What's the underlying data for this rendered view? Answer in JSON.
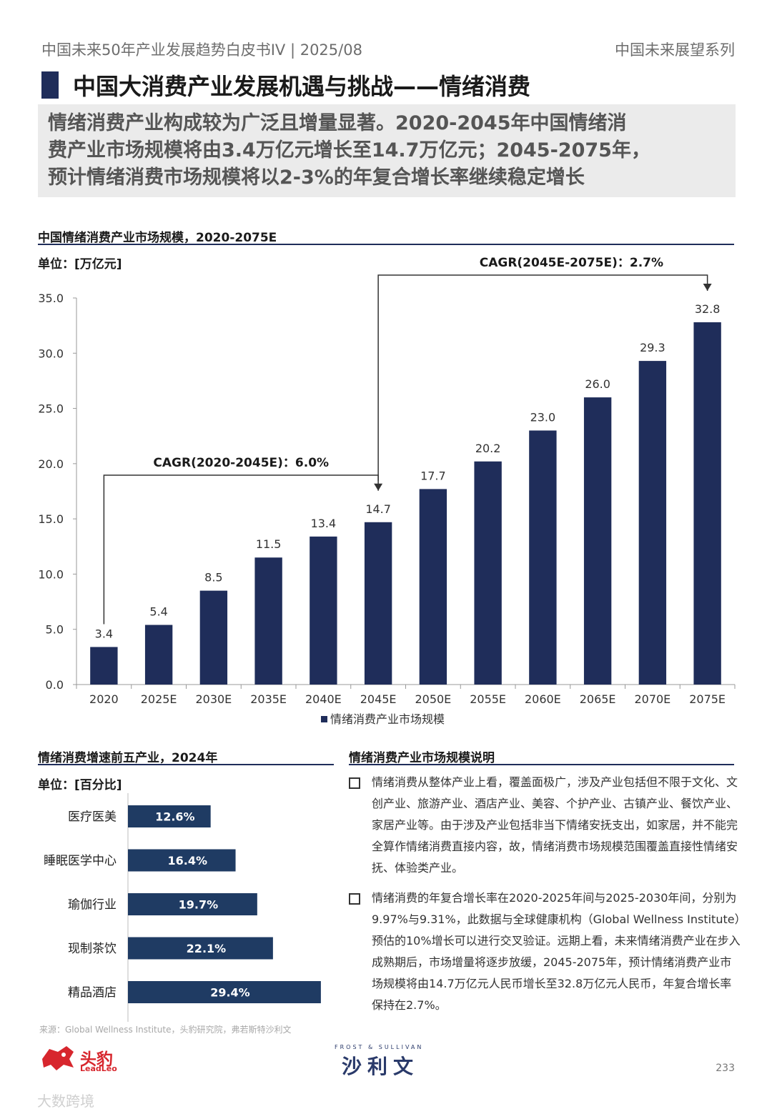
{
  "header": {
    "left": "中国未来50年产业发展趋势白皮书IV | 2025/08",
    "right": "中国未来展望系列"
  },
  "title": "中国大消费产业发展机遇与挑战——情绪消费",
  "summary": [
    "情绪消费产业构成较为广泛且增量显著。2020-2045年中国情绪消",
    "费产业市场规模将由3.4万亿元增长至14.7万亿元；2045-2075年，",
    "预计情绪消费市场规模将以2-3%的年复合增长率继续稳定增长"
  ],
  "chart_data": [
    {
      "type": "bar",
      "title": "中国情绪消费产业市场规模，2020-2075E",
      "unit_label": "单位：[万亿元]",
      "categories": [
        "2020",
        "2025E",
        "2030E",
        "2035E",
        "2040E",
        "2045E",
        "2050E",
        "2055E",
        "2060E",
        "2065E",
        "2070E",
        "2075E"
      ],
      "series": [
        {
          "name": "情绪消费产业市场规模",
          "values": [
            3.4,
            5.4,
            8.5,
            11.5,
            13.4,
            14.7,
            17.7,
            20.2,
            23.0,
            26.0,
            29.3,
            32.8
          ]
        }
      ],
      "value_labels": [
        "3.4",
        "5.4",
        "8.5",
        "11.5",
        "13.4",
        "14.7",
        "17.7",
        "20.2",
        "23.0",
        "26.0",
        "29.3",
        "32.8"
      ],
      "yticks": [
        "0.0",
        "5.0",
        "10.0",
        "15.0",
        "20.0",
        "25.0",
        "30.0",
        "35.0"
      ],
      "ylim": [
        0,
        35
      ],
      "bar_color": "#1f2d5a",
      "legend_position": "bottom",
      "annotations": [
        {
          "text": "CAGR(2020-2045E)：6.0%",
          "from": "2020",
          "to": "2045E"
        },
        {
          "text": "CAGR(2045E-2075E)：2.7%",
          "from": "2045E",
          "to": "2075E"
        }
      ]
    },
    {
      "type": "bar",
      "orientation": "horizontal",
      "title": "情绪消费增速前五产业，2024年",
      "unit_label": "单位：[百分比]",
      "categories": [
        "医疗医美",
        "睡眠医学中心",
        "瑜伽行业",
        "现制茶饮",
        "精品酒店"
      ],
      "values": [
        12.6,
        16.4,
        19.7,
        22.1,
        29.4
      ],
      "value_labels": [
        "12.6%",
        "16.4%",
        "19.7%",
        "22.1%",
        "29.4%"
      ],
      "bar_color": "#1f3b63"
    }
  ],
  "notes": {
    "title": "情绪消费产业市场规模说明",
    "items": [
      "情绪消费从整体产业上看，覆盖面极广，涉及产业包括但不限于文化、文创产业、旅游产业、酒店产业、美容、个护产业、古镇产业、餐饮产业、家居产业等。由于涉及产业包括非当下情绪安抚支出，如家居，并不能完全算作情绪消费直接内容，故，情绪消费市场规模范围覆盖直接性情绪安抚、体验类产业。",
      "情绪消费的年复合增长率在2020-2025年间与2025-2030年间，分别为9.97%与9.31%，此数据与全球健康机构（Global Wellness Institute）预估的10%增长可以进行交叉验证。远期上看，未来情绪消费产业在步入成熟期后，市场增量将逐步放缓，2045-2075年，预计情绪消费产业市场规模将由14.7万亿元人民币增长至32.8万亿元人民币，年复合增长率保持在2.7%。"
    ]
  },
  "source": "来源：Global Wellness Institute，头豹研究院，弗若斯特沙利文",
  "page_number": "233",
  "logos": {
    "leadleo_cn": "头豹",
    "leadleo_en": "LeadLeo",
    "fs_top": "FROST & SULLIVAN",
    "fs_main": "沙利文"
  },
  "watermark": "大数跨境"
}
